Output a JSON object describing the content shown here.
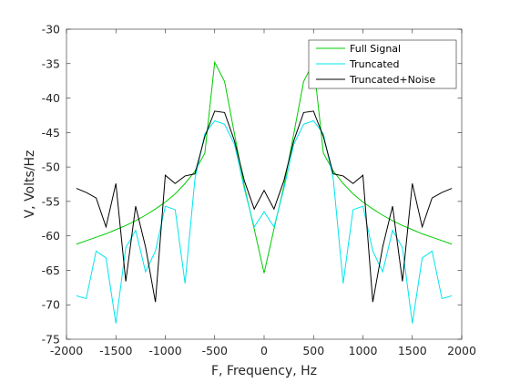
{
  "chart_data": {
    "type": "line",
    "xlabel": "F, Frequency, Hz",
    "ylabel": "V, Volts/Hz",
    "xlim": [
      -2000,
      2000
    ],
    "ylim": [
      -75,
      -30
    ],
    "xticks": [
      -2000,
      -1500,
      -1000,
      -500,
      0,
      500,
      1000,
      1500,
      2000
    ],
    "yticks": [
      -30,
      -35,
      -40,
      -45,
      -50,
      -55,
      -60,
      -65,
      -70,
      -75
    ],
    "grid": false,
    "box": true,
    "legend_location": "top-right",
    "x": [
      -1900,
      -1800,
      -1700,
      -1600,
      -1500,
      -1400,
      -1300,
      -1200,
      -1100,
      -1000,
      -900,
      -800,
      -700,
      -600,
      -500,
      -400,
      -300,
      -200,
      -100,
      0,
      100,
      200,
      300,
      400,
      500,
      600,
      700,
      800,
      900,
      1000,
      1100,
      1200,
      1300,
      1400,
      1500,
      1600,
      1700,
      1800,
      1900
    ],
    "series": [
      {
        "name": "Full Signal",
        "color": "#00cc00",
        "values": [
          -61.2,
          -60.7,
          -60.2,
          -59.7,
          -59.1,
          -58.5,
          -57.8,
          -57.0,
          -56.1,
          -55.1,
          -53.9,
          -52.4,
          -50.6,
          -48.0,
          -34.8,
          -37.6,
          -45.2,
          -52.8,
          -59.0,
          -65.4,
          -59.0,
          -52.8,
          -45.2,
          -37.6,
          -34.8,
          -48.0,
          -50.6,
          -52.4,
          -53.9,
          -55.1,
          -56.1,
          -57.0,
          -57.8,
          -58.5,
          -59.1,
          -59.7,
          -60.2,
          -60.7,
          -61.2
        ]
      },
      {
        "name": "Truncated",
        "color": "#00e5ee",
        "values": [
          -68.7,
          -69.1,
          -62.2,
          -63.2,
          -72.7,
          -61.7,
          -59.2,
          -65.2,
          -62.2,
          -55.7,
          -56.2,
          -66.9,
          -51.7,
          -45.2,
          -43.3,
          -43.8,
          -46.7,
          -53.2,
          -58.7,
          -56.5,
          -58.7,
          -53.2,
          -46.7,
          -43.8,
          -43.3,
          -45.2,
          -51.7,
          -66.9,
          -56.2,
          -55.7,
          -62.2,
          -65.2,
          -59.2,
          -61.7,
          -72.7,
          -63.2,
          -62.2,
          -69.1,
          -68.7
        ]
      },
      {
        "name": "Truncated+Noise",
        "color": "#000000",
        "values": [
          -53.1,
          -53.7,
          -54.5,
          -58.7,
          -52.4,
          -66.6,
          -55.7,
          -61.6,
          -69.6,
          -51.2,
          -52.4,
          -51.3,
          -51.0,
          -45.6,
          -41.9,
          -42.1,
          -46.2,
          -52.0,
          -56.1,
          -53.4,
          -56.1,
          -52.0,
          -46.2,
          -42.1,
          -41.9,
          -45.6,
          -51.0,
          -51.3,
          -52.4,
          -51.2,
          -69.6,
          -61.6,
          -55.7,
          -66.6,
          -52.4,
          -58.7,
          -54.5,
          -53.7,
          -53.1
        ]
      }
    ]
  }
}
